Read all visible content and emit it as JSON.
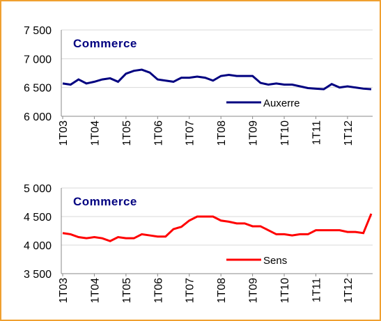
{
  "chart_data": [
    {
      "type": "line",
      "title": "Commerce",
      "categories": [
        "1T03",
        null,
        null,
        null,
        "1T04",
        null,
        null,
        null,
        "1T05",
        null,
        null,
        null,
        "1T06",
        null,
        null,
        null,
        "1T07",
        null,
        null,
        null,
        "1T08",
        null,
        null,
        null,
        "1T09",
        null,
        null,
        null,
        "1T10",
        null,
        null,
        null,
        "1T11",
        null,
        null,
        null,
        "1T12",
        null,
        null,
        null
      ],
      "series": [
        {
          "name": "Auxerre",
          "color": "#000080",
          "values": [
            6570,
            6550,
            6640,
            6570,
            6600,
            6640,
            6660,
            6600,
            6740,
            6790,
            6810,
            6760,
            6640,
            6620,
            6600,
            6670,
            6670,
            6690,
            6670,
            6620,
            6700,
            6720,
            6700,
            6700,
            6700,
            6580,
            6550,
            6570,
            6550,
            6550,
            6520,
            6490,
            6480,
            6470,
            6560,
            6500,
            6520,
            6500,
            6480,
            6470
          ]
        }
      ],
      "ylim": [
        6000,
        7500
      ],
      "yticks": [
        {
          "value": 6000,
          "label": "6 000"
        },
        {
          "value": 6500,
          "label": "6 500"
        },
        {
          "value": 7000,
          "label": "7 000"
        },
        {
          "value": 7500,
          "label": "7 500"
        }
      ],
      "grid": true
    },
    {
      "type": "line",
      "title": "Commerce",
      "categories": [
        "1T03",
        null,
        null,
        null,
        "1T04",
        null,
        null,
        null,
        "1T05",
        null,
        null,
        null,
        "1T06",
        null,
        null,
        null,
        "1T07",
        null,
        null,
        null,
        "1T08",
        null,
        null,
        null,
        "1T09",
        null,
        null,
        null,
        "1T10",
        null,
        null,
        null,
        "1T11",
        null,
        null,
        null,
        "1T12",
        null,
        null,
        null
      ],
      "series": [
        {
          "name": "Sens",
          "color": "#ff0000",
          "values": [
            4210,
            4190,
            4140,
            4120,
            4140,
            4120,
            4070,
            4140,
            4120,
            4120,
            4190,
            4170,
            4150,
            4150,
            4280,
            4320,
            4430,
            4500,
            4500,
            4500,
            4430,
            4410,
            4380,
            4380,
            4330,
            4330,
            4260,
            4190,
            4190,
            4170,
            4190,
            4190,
            4260,
            4260,
            4260,
            4260,
            4230,
            4230,
            4210,
            4550
          ]
        }
      ],
      "ylim": [
        3500,
        5000
      ],
      "yticks": [
        {
          "value": 3500,
          "label": "3 500"
        },
        {
          "value": 4000,
          "label": "4 000"
        },
        {
          "value": 4500,
          "label": "4 500"
        },
        {
          "value": 5000,
          "label": "5 000"
        }
      ],
      "grid": true
    }
  ]
}
